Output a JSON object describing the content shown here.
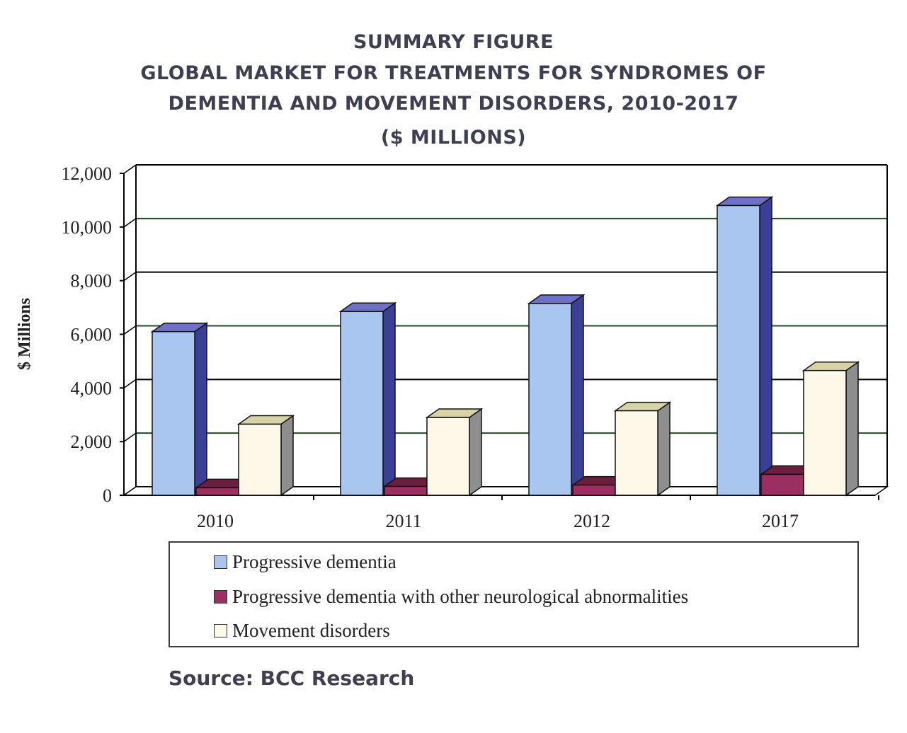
{
  "chart_data": {
    "type": "bar",
    "title_lines": [
      "SUMMARY FIGURE",
      "GLOBAL MARKET FOR TREATMENTS FOR SYNDROMES OF",
      "DEMENTIA AND MOVEMENT DISORDERS,  2010-2017",
      "($ MILLIONS)"
    ],
    "ylabel": "$ Millions",
    "xlabel": "",
    "categories": [
      "2010",
      "2011",
      "2012",
      "2017"
    ],
    "ylim": [
      0,
      12000
    ],
    "yticks": [
      0,
      2000,
      4000,
      6000,
      8000,
      10000,
      12000
    ],
    "ytick_labels": [
      "0",
      "2,000",
      "4,000",
      "6,000",
      "8,000",
      "10,000",
      "12,000"
    ],
    "grid": true,
    "three_d": true,
    "legend_position": "bottom",
    "series": [
      {
        "name": "Progressive dementia",
        "values": [
          6100,
          6850,
          7150,
          10800
        ],
        "color": "#a9c6f0",
        "side_color": "#3b3f96",
        "top_color": "#6f70c8"
      },
      {
        "name": "Progressive dementia with other neurological abnormalities",
        "values": [
          280,
          330,
          380,
          780
        ],
        "color": "#9c2f62",
        "side_color": "#5a1535",
        "top_color": "#6b1f3f"
      },
      {
        "name": "Movement disorders",
        "values": [
          2650,
          2900,
          3150,
          4650
        ],
        "color": "#fdf8e8",
        "side_color": "#8e8e8e",
        "top_color": "#d7d3a6"
      }
    ]
  },
  "source": "Source: BCC Research"
}
